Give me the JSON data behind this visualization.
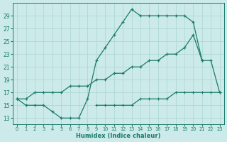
{
  "xlabel": "Humidex (Indice chaleur)",
  "bg_color": "#cceaea",
  "grid_color": "#b0d8d8",
  "line_color": "#1a7a6a",
  "xlim": [
    -0.5,
    23.5
  ],
  "ylim": [
    12,
    31
  ],
  "xticks": [
    0,
    1,
    2,
    3,
    4,
    5,
    6,
    7,
    8,
    9,
    10,
    11,
    12,
    13,
    14,
    15,
    16,
    17,
    18,
    19,
    20,
    21,
    22,
    23
  ],
  "yticks": [
    13,
    15,
    17,
    19,
    21,
    23,
    25,
    27,
    29
  ],
  "line1_x": [
    0,
    1,
    2,
    3,
    4,
    5,
    6,
    7,
    8,
    9,
    10,
    11,
    12,
    13,
    14,
    15,
    16,
    17,
    18,
    19,
    20,
    21
  ],
  "line1_y": [
    16,
    15,
    15,
    15,
    14,
    13,
    13,
    13,
    16,
    22,
    24,
    26,
    28,
    30,
    29,
    29,
    29,
    29,
    29,
    29,
    28,
    22
  ],
  "line2_x": [
    0,
    1,
    2,
    3,
    4,
    5,
    6,
    7,
    8,
    9,
    10,
    11,
    12,
    13,
    14,
    15,
    16,
    17,
    18,
    19,
    20,
    21,
    22,
    23
  ],
  "line2_y": [
    16,
    16,
    17,
    17,
    17,
    17,
    18,
    18,
    18,
    19,
    19,
    20,
    20,
    21,
    21,
    22,
    22,
    23,
    23,
    24,
    26,
    22,
    22,
    17
  ],
  "line3_x": [
    9,
    10,
    11,
    12,
    13,
    14,
    15,
    16,
    17,
    18,
    19,
    20,
    21,
    22,
    23
  ],
  "line3_y": [
    15,
    15,
    15,
    15,
    15,
    16,
    16,
    16,
    16,
    17,
    17,
    17,
    17,
    17,
    17
  ]
}
